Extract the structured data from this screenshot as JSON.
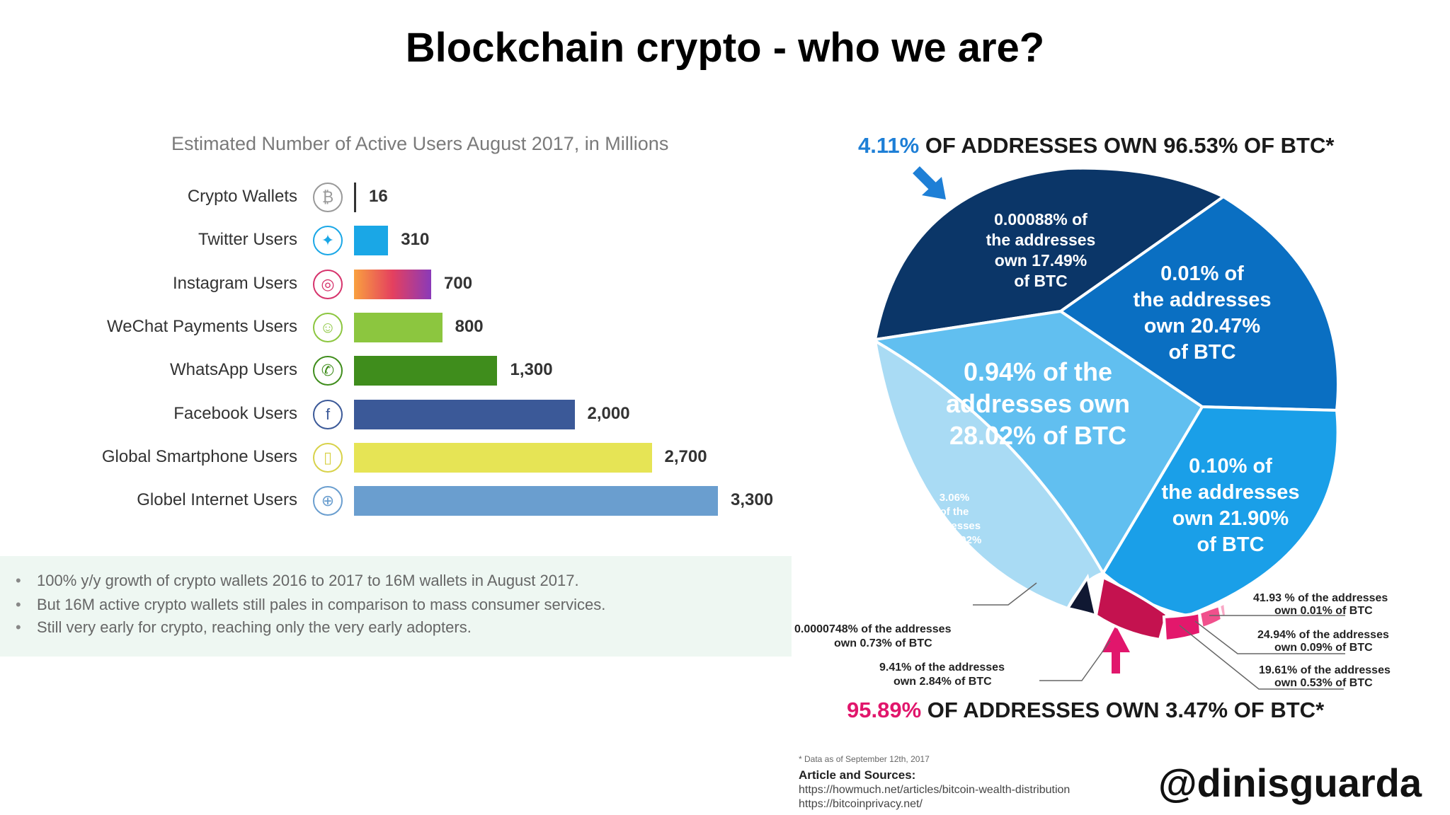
{
  "page_title": "Blockchain crypto - who we are?",
  "bar_chart": {
    "title": "Estimated Number of Active Users August 2017, in Millions",
    "notes": [
      "100% y/y growth of crypto wallets 2016 to 2017 to 16M wallets in August 2017.",
      "But 16M active crypto wallets still pales in comparison to mass consumer services.",
      "Still very early for crypto, reaching only the very early adopters."
    ],
    "bullet": "•"
  },
  "pie_chart": {
    "top_heading_accent": "4.11%",
    "top_heading_rest": " OF ADDRESSES OWN 96.53% OF BTC*",
    "bottom_heading_accent": "95.89%",
    "bottom_heading_rest": " OF ADDRESSES OWN 3.47% OF BTC*",
    "callouts": [
      "0.0000748% of the addresses",
      "own 0.73% of BTC",
      "9.41% of the addresses",
      "own 2.84% of BTC",
      "41.93 % of the addresses",
      "own 0.01% of BTC",
      "24.94% of the addresses",
      "own 0.09% of BTC",
      "19.61% of the addresses",
      "own 0.53% of BTC"
    ]
  },
  "footnotes": {
    "date_note": "* Data as of September 12th, 2017",
    "sources_label": "Article and Sources:",
    "source_1": "https://howmuch.net/articles/bitcoin-wealth-distribution",
    "source_2": "https://bitcoinprivacy.net/"
  },
  "handle": "@dinisguarda",
  "chart_data": [
    {
      "type": "bar",
      "title": "Estimated Number of Active Users August 2017, in Millions",
      "categories": [
        "Crypto Wallets",
        "Twitter Users",
        "Instagram Users",
        "WeChat Payments Users",
        "WhatsApp Users",
        "Facebook Users",
        "Global Smartphone Users",
        "Globel Internet Users"
      ],
      "values": [
        16,
        310,
        700,
        800,
        1300,
        2000,
        2700,
        3300
      ],
      "value_labels": [
        "16",
        "310",
        "700",
        "800",
        "1,300",
        "2,000",
        "2,700",
        "3,300"
      ],
      "icons": [
        "bitcoin-icon",
        "twitter-icon",
        "instagram-icon",
        "wechat-icon",
        "whatsapp-icon",
        "facebook-icon",
        "smartphone-icon",
        "globe-icon"
      ],
      "colors": [
        "#333333",
        "#1aa7e6",
        "#e4405f",
        "#8cc63f",
        "#3f8d1c",
        "#3b5998",
        "#e6e455",
        "#6a9ecf"
      ],
      "xlim": [
        0,
        3300
      ]
    },
    {
      "type": "pie",
      "title": "4.11% OF ADDRESSES OWN 96.53% OF BTC*",
      "slices": [
        {
          "label": "0.00088% of the addresses own 17.49% of BTC",
          "value": 17.49,
          "color": "#0b3668"
        },
        {
          "label": "0.01% of the addresses own 20.47% of BTC",
          "value": 20.47,
          "color": "#0a6fc2"
        },
        {
          "label": "0.10% of the addresses own 21.90% of BTC",
          "value": 21.9,
          "color": "#1a9fe8"
        },
        {
          "label": "0.94% of the addresses own 28.02% of BTC",
          "value": 28.02,
          "color": "#61bff0"
        },
        {
          "label": "3.06% of the addresses own 7.92% of BTC",
          "value": 7.92,
          "color": "#a9dbf4"
        },
        {
          "label": "0.0000748% of the addresses own 0.73% of BTC",
          "value": 0.73,
          "color": "#101832"
        },
        {
          "label": "9.41% of the addresses own 2.84% of BTC",
          "value": 2.84,
          "color": "#c4124f"
        },
        {
          "label": "19.61% of the addresses own 0.53% of BTC",
          "value": 0.53,
          "color": "#e3186c"
        },
        {
          "label": "24.94% of the addresses own 0.09% of BTC",
          "value": 0.09,
          "color": "#f0508c"
        },
        {
          "label": "41.93 % of the addresses own 0.01% of BTC",
          "value": 0.01,
          "color": "#f9a8c6"
        }
      ],
      "slice_texts": [
        [
          "0.00088% of",
          "the addresses",
          "own 17.49%",
          "of BTC"
        ],
        [
          "0.01% of",
          "the addresses",
          "own 20.47%",
          "of BTC"
        ],
        [
          "0.10% of",
          "the addresses",
          "own 21.90%",
          "of BTC"
        ],
        [
          "0.94% of the",
          "addresses own",
          "28.02% of BTC"
        ],
        [
          "3.06%",
          "of the",
          "addresses",
          "own 7.92%",
          "of BTC"
        ]
      ]
    }
  ]
}
